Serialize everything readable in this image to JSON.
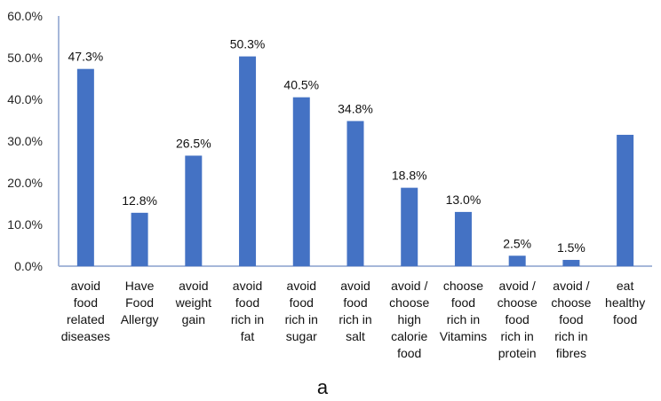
{
  "chart_data": {
    "type": "bar",
    "title": "",
    "xlabel": "",
    "ylabel": "",
    "caption": "a",
    "ylim": [
      0,
      60
    ],
    "y_ticks": [
      "0.0%",
      "10.0%",
      "20.0%",
      "30.0%",
      "40.0%",
      "50.0%",
      "60.0%"
    ],
    "grid": false,
    "bar_color": "#4472C4",
    "axis_color": "#A6B7D9",
    "categories": [
      [
        "avoid",
        "food",
        "related",
        "diseases"
      ],
      [
        "Have",
        "Food",
        "Allergy"
      ],
      [
        "avoid",
        "weight",
        "gain"
      ],
      [
        "avoid",
        "food",
        "rich in",
        "fat"
      ],
      [
        "avoid",
        "food",
        "rich in",
        "sugar"
      ],
      [
        "avoid",
        "food",
        "rich in",
        "salt"
      ],
      [
        "avoid /",
        "choose",
        "high",
        "calorie",
        "food"
      ],
      [
        "choose",
        "food",
        "rich in",
        "Vitamins"
      ],
      [
        "avoid /",
        "choose",
        "food",
        "rich in",
        "protein"
      ],
      [
        "avoid /",
        "choose",
        "food",
        "rich in",
        "fibres"
      ],
      [
        "eat",
        "healthy",
        "food"
      ]
    ],
    "values": [
      47.3,
      12.8,
      26.5,
      50.3,
      40.5,
      34.8,
      18.8,
      13.0,
      2.5,
      1.5,
      31.5
    ],
    "data_labels": [
      "47.3%",
      "12.8%",
      "26.5%",
      "50.3%",
      "40.5%",
      "34.8%",
      "18.8%",
      "13.0%",
      "2.5%",
      "1.5%",
      null
    ]
  }
}
